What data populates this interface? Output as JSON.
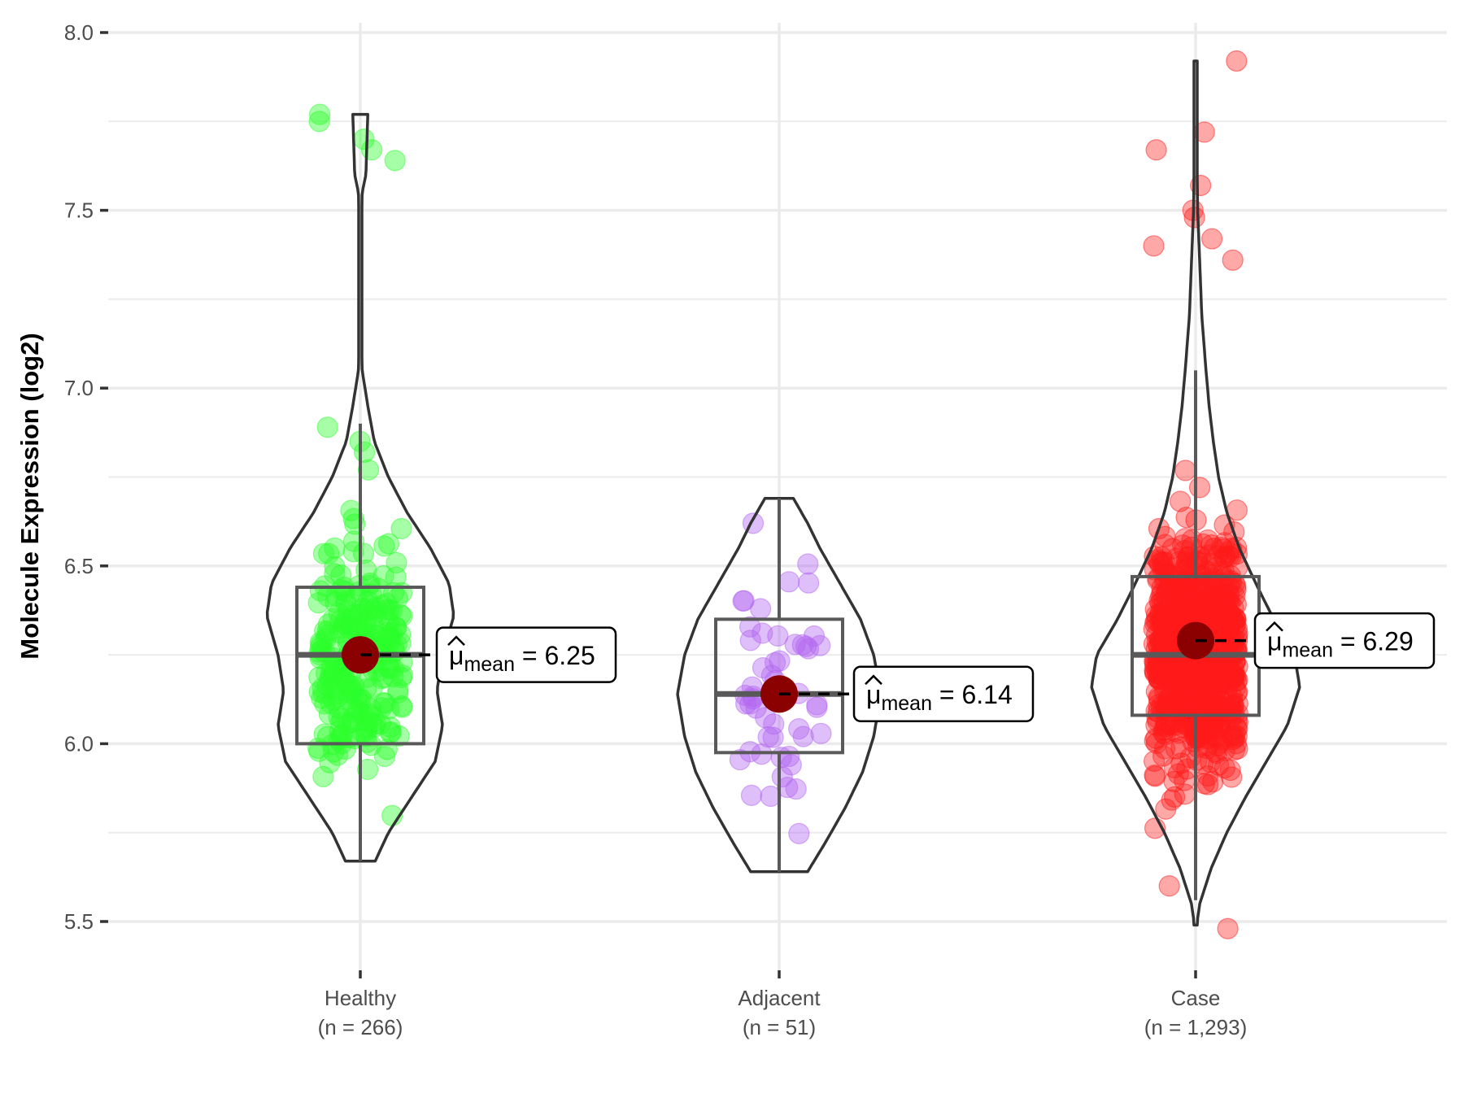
{
  "chart_data": {
    "type": "violin",
    "title": "",
    "xlabel": "",
    "ylabel": "Molecule Expression (log2)",
    "ylim": [
      5.5,
      8.0
    ],
    "yticks": [
      "5.5",
      "6.0",
      "6.5",
      "7.0",
      "7.5",
      "8.0"
    ],
    "grid": true,
    "mean_label_prefix": "mean",
    "groups": [
      {
        "name": "Healthy",
        "n_label": "(n = 266)",
        "n": 266,
        "color": "#2bff2b",
        "mean": 6.25,
        "mean_label": "6.25",
        "box": {
          "q1": 6.0,
          "median": 6.25,
          "q3": 6.44,
          "whisker_low": 5.67,
          "whisker_high": 6.9
        },
        "range": [
          5.67,
          7.77
        ],
        "violin_profile": [
          [
            5.67,
            0.16
          ],
          [
            5.75,
            0.3
          ],
          [
            5.85,
            0.55
          ],
          [
            5.95,
            0.8
          ],
          [
            6.05,
            0.88
          ],
          [
            6.15,
            0.82
          ],
          [
            6.25,
            0.88
          ],
          [
            6.36,
            1.0
          ],
          [
            6.45,
            0.95
          ],
          [
            6.55,
            0.75
          ],
          [
            6.65,
            0.5
          ],
          [
            6.75,
            0.3
          ],
          [
            6.85,
            0.15
          ],
          [
            6.95,
            0.08
          ],
          [
            7.05,
            0.02
          ],
          [
            7.2,
            0.01
          ],
          [
            7.4,
            0.01
          ],
          [
            7.55,
            0.02
          ],
          [
            7.6,
            0.06
          ],
          [
            7.77,
            0.08
          ]
        ],
        "outliers": [
          7.77,
          7.75,
          7.7,
          7.67,
          7.64,
          6.89,
          6.85,
          6.82,
          6.77
        ]
      },
      {
        "name": "Adjacent",
        "n_label": "(n = 51)",
        "n": 51,
        "color": "#b266f0",
        "mean": 6.14,
        "mean_label": "6.14",
        "box": {
          "q1": 5.975,
          "median": 6.14,
          "q3": 6.35,
          "whisker_low": 5.64,
          "whisker_high": 6.69
        },
        "range": [
          5.64,
          6.69
        ],
        "violin_profile": [
          [
            5.64,
            0.28
          ],
          [
            5.72,
            0.45
          ],
          [
            5.82,
            0.65
          ],
          [
            5.92,
            0.82
          ],
          [
            6.02,
            0.93
          ],
          [
            6.14,
            1.0
          ],
          [
            6.25,
            0.93
          ],
          [
            6.35,
            0.8
          ],
          [
            6.45,
            0.6
          ],
          [
            6.55,
            0.4
          ],
          [
            6.62,
            0.28
          ],
          [
            6.69,
            0.14
          ]
        ]
      },
      {
        "name": "Case",
        "n_label": "(n = 1,293)",
        "n": 1293,
        "color": "#ff1a1a",
        "mean": 6.29,
        "mean_label": "6.29",
        "box": {
          "q1": 6.08,
          "median": 6.25,
          "q3": 6.47,
          "whisker_low": 5.56,
          "whisker_high": 7.05
        },
        "range": [
          5.49,
          7.92
        ],
        "violin_profile": [
          [
            5.49,
            0.01
          ],
          [
            5.55,
            0.04
          ],
          [
            5.65,
            0.15
          ],
          [
            5.75,
            0.3
          ],
          [
            5.85,
            0.48
          ],
          [
            5.95,
            0.68
          ],
          [
            6.05,
            0.88
          ],
          [
            6.16,
            1.0
          ],
          [
            6.25,
            0.95
          ],
          [
            6.35,
            0.75
          ],
          [
            6.45,
            0.58
          ],
          [
            6.55,
            0.42
          ],
          [
            6.65,
            0.3
          ],
          [
            6.75,
            0.22
          ],
          [
            6.85,
            0.17
          ],
          [
            6.95,
            0.13
          ],
          [
            7.05,
            0.1
          ],
          [
            7.2,
            0.06
          ],
          [
            7.35,
            0.04
          ],
          [
            7.5,
            0.02
          ],
          [
            7.7,
            0.01
          ],
          [
            7.92,
            0.01
          ]
        ],
        "outliers": [
          7.92,
          7.72,
          7.67,
          7.57,
          7.5,
          7.48,
          7.42,
          7.4,
          7.36,
          5.6,
          5.48
        ]
      }
    ]
  }
}
